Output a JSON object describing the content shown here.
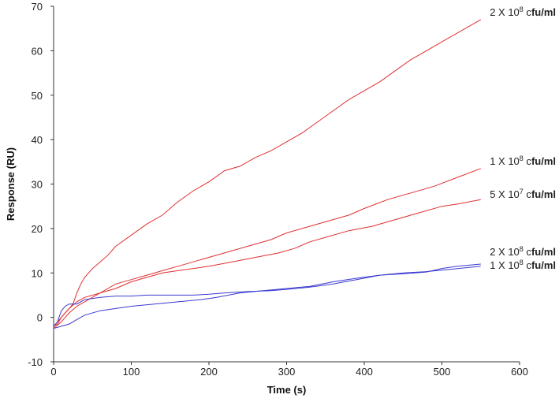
{
  "chart_data": {
    "type": "line",
    "title": "",
    "xlabel": "Time (s)",
    "ylabel": "Response (RU)",
    "xlim": [
      0,
      600
    ],
    "ylim": [
      -10,
      70
    ],
    "xticks": [
      0,
      100,
      200,
      300,
      400,
      500,
      600
    ],
    "yticks": [
      -10,
      0,
      10,
      20,
      30,
      40,
      50,
      60,
      70
    ],
    "grid": false,
    "legend": "none",
    "series": [
      {
        "name": "2 X 10⁸ cfu/ml",
        "label_parts": {
          "prefix": "2 X 10",
          "exp": "8",
          "mid": " c",
          "unit": "fu/ml"
        },
        "color": "#e03030",
        "points": [
          [
            0,
            -2
          ],
          [
            5,
            -1.5
          ],
          [
            10,
            0
          ],
          [
            15,
            1
          ],
          [
            20,
            2
          ],
          [
            25,
            3
          ],
          [
            30,
            5.5
          ],
          [
            35,
            7.5
          ],
          [
            40,
            9
          ],
          [
            50,
            11
          ],
          [
            60,
            12.5
          ],
          [
            70,
            14
          ],
          [
            80,
            16
          ],
          [
            100,
            18.5
          ],
          [
            120,
            21
          ],
          [
            140,
            23
          ],
          [
            160,
            26
          ],
          [
            180,
            28.5
          ],
          [
            200,
            30.5
          ],
          [
            220,
            33
          ],
          [
            240,
            34
          ],
          [
            260,
            36
          ],
          [
            280,
            37.5
          ],
          [
            300,
            39.5
          ],
          [
            320,
            41.5
          ],
          [
            340,
            44
          ],
          [
            360,
            46.5
          ],
          [
            380,
            49
          ],
          [
            400,
            51
          ],
          [
            420,
            53
          ],
          [
            440,
            55.5
          ],
          [
            460,
            58
          ],
          [
            480,
            60
          ],
          [
            500,
            62
          ],
          [
            520,
            64
          ],
          [
            540,
            66
          ],
          [
            550,
            67
          ]
        ]
      },
      {
        "name": "1 X 10⁸ cfu/ml",
        "label_parts": {
          "prefix": "1 X 10",
          "exp": "8",
          "mid": " c",
          "unit": "fu/ml"
        },
        "color": "#e03030",
        "points": [
          [
            0,
            -2.5
          ],
          [
            10,
            -1
          ],
          [
            20,
            1
          ],
          [
            30,
            2.5
          ],
          [
            40,
            3.5
          ],
          [
            60,
            5.5
          ],
          [
            80,
            7.5
          ],
          [
            100,
            8.5
          ],
          [
            120,
            9.5
          ],
          [
            140,
            10.5
          ],
          [
            160,
            11.5
          ],
          [
            180,
            12.5
          ],
          [
            200,
            13.5
          ],
          [
            220,
            14.5
          ],
          [
            250,
            16
          ],
          [
            280,
            17.5
          ],
          [
            300,
            19
          ],
          [
            320,
            20
          ],
          [
            350,
            21.5
          ],
          [
            380,
            23
          ],
          [
            400,
            24.5
          ],
          [
            430,
            26.5
          ],
          [
            460,
            28
          ],
          [
            490,
            29.5
          ],
          [
            520,
            31.5
          ],
          [
            550,
            33.5
          ]
        ]
      },
      {
        "name": "5 X 10⁷ cfu/ml",
        "label_parts": {
          "prefix": "5 X 10",
          "exp": "7",
          "mid": " c",
          "unit": "fu/ml"
        },
        "color": "#e03030",
        "points": [
          [
            0,
            -2
          ],
          [
            10,
            0
          ],
          [
            20,
            2
          ],
          [
            30,
            3.5
          ],
          [
            40,
            4.5
          ],
          [
            60,
            5.5
          ],
          [
            80,
            6.5
          ],
          [
            100,
            8
          ],
          [
            120,
            9
          ],
          [
            140,
            10
          ],
          [
            160,
            10.5
          ],
          [
            180,
            11
          ],
          [
            200,
            11.5
          ],
          [
            230,
            12.5
          ],
          [
            260,
            13.5
          ],
          [
            290,
            14.5
          ],
          [
            310,
            15.5
          ],
          [
            330,
            17
          ],
          [
            350,
            18
          ],
          [
            380,
            19.5
          ],
          [
            410,
            20.5
          ],
          [
            440,
            22
          ],
          [
            470,
            23.5
          ],
          [
            500,
            25
          ],
          [
            520,
            25.5
          ],
          [
            550,
            26.5
          ]
        ]
      },
      {
        "name": "2 X 10⁸ cfu/ml",
        "label_parts": {
          "prefix": "2 X 10",
          "exp": "8",
          "mid": " c",
          "unit": "fu/ml"
        },
        "color": "#3a3ad0",
        "points": [
          [
            0,
            -2
          ],
          [
            5,
            -1
          ],
          [
            10,
            1.5
          ],
          [
            15,
            2.5
          ],
          [
            20,
            3
          ],
          [
            30,
            3
          ],
          [
            40,
            4
          ],
          [
            60,
            4.5
          ],
          [
            80,
            4.8
          ],
          [
            100,
            4.8
          ],
          [
            120,
            5
          ],
          [
            150,
            5
          ],
          [
            180,
            5
          ],
          [
            200,
            5.2
          ],
          [
            220,
            5.5
          ],
          [
            250,
            5.8
          ],
          [
            280,
            6
          ],
          [
            300,
            6.3
          ],
          [
            330,
            6.8
          ],
          [
            360,
            7.5
          ],
          [
            390,
            8.5
          ],
          [
            420,
            9.5
          ],
          [
            450,
            9.8
          ],
          [
            480,
            10.2
          ],
          [
            500,
            11
          ],
          [
            520,
            11.5
          ],
          [
            550,
            12
          ]
        ]
      },
      {
        "name": "1 X 10⁸ cfu/ml",
        "label_parts": {
          "prefix": "1 X 10",
          "exp": "8",
          "mid": " c",
          "unit": "fu/ml"
        },
        "color": "#3a3ad0",
        "points": [
          [
            0,
            -2.5
          ],
          [
            10,
            -2
          ],
          [
            20,
            -1.5
          ],
          [
            30,
            -0.5
          ],
          [
            40,
            0.5
          ],
          [
            60,
            1.5
          ],
          [
            80,
            2
          ],
          [
            100,
            2.5
          ],
          [
            130,
            3
          ],
          [
            160,
            3.5
          ],
          [
            190,
            4
          ],
          [
            210,
            4.5
          ],
          [
            240,
            5.5
          ],
          [
            270,
            6
          ],
          [
            300,
            6.5
          ],
          [
            330,
            7
          ],
          [
            360,
            8
          ],
          [
            390,
            8.8
          ],
          [
            420,
            9.5
          ],
          [
            450,
            10
          ],
          [
            480,
            10.3
          ],
          [
            510,
            10.8
          ],
          [
            550,
            11.5
          ]
        ]
      }
    ]
  }
}
